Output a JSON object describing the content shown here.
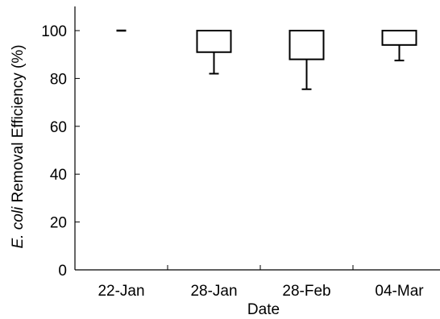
{
  "chart_data": {
    "type": "box",
    "xlabel": "Date",
    "ylabel_italic": "E. coli",
    "ylabel_rest": " Removal Efficiency  (%)",
    "ylim": [
      0,
      100
    ],
    "yticks": [
      "0",
      "20",
      "40",
      "60",
      "80",
      "100"
    ],
    "grid": false,
    "categories": [
      "22-Jan",
      "28-Jan",
      "28-Feb",
      "04-Mar"
    ],
    "boxes": [
      {
        "min": 100,
        "q1": 100,
        "median": 100,
        "q3": 100,
        "max": 100
      },
      {
        "min": 82,
        "q1": 91,
        "median": 100,
        "q3": 100,
        "max": 100
      },
      {
        "min": 75.5,
        "q1": 88,
        "median": 100,
        "q3": 100,
        "max": 100
      },
      {
        "min": 87.5,
        "q1": 94,
        "median": 100,
        "q3": 100,
        "max": 100
      }
    ]
  }
}
